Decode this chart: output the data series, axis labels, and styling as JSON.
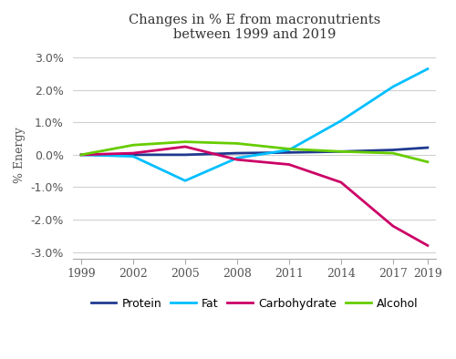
{
  "title": "Changes in % E from macronutrients\nbetween 1999 and 2019",
  "xlabel": "",
  "ylabel": "% Energy",
  "years": [
    1999,
    2002,
    2005,
    2008,
    2011,
    2014,
    2017,
    2019
  ],
  "series": {
    "Protein": {
      "color": "#1f3a8f",
      "values": [
        0.0,
        0.0,
        0.0,
        0.05,
        0.07,
        0.1,
        0.15,
        0.22
      ]
    },
    "Fat": {
      "color": "#00bfff",
      "values": [
        0.0,
        -0.05,
        -0.8,
        -0.1,
        0.15,
        1.05,
        2.1,
        2.65
      ]
    },
    "Carbohydrate": {
      "color": "#cc0066",
      "values": [
        0.0,
        0.05,
        0.25,
        -0.15,
        -0.3,
        -0.85,
        -2.2,
        -2.8
      ]
    },
    "Alcohol": {
      "color": "#66cc00",
      "values": [
        0.0,
        0.3,
        0.4,
        0.35,
        0.18,
        0.1,
        0.05,
        -0.22
      ]
    }
  },
  "ylim": [
    -3.2,
    3.2
  ],
  "yticks": [
    -3.0,
    -2.0,
    -1.0,
    0.0,
    1.0,
    2.0,
    3.0
  ],
  "background_color": "#ffffff",
  "grid_color": "#d0d0d0",
  "legend_order": [
    "Protein",
    "Fat",
    "Carbohydrate",
    "Alcohol"
  ]
}
